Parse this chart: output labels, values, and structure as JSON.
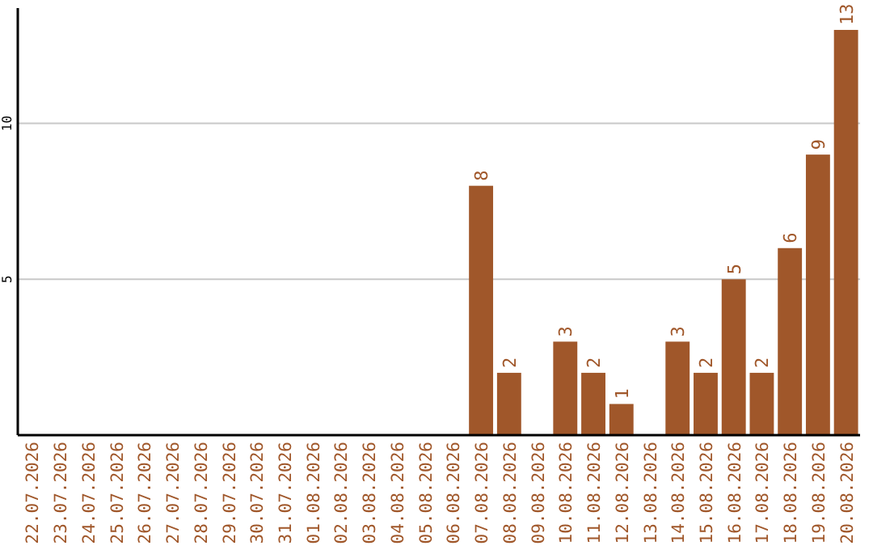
{
  "chart_data": {
    "type": "bar",
    "categories": [
      "22.07.2026",
      "23.07.2026",
      "24.07.2026",
      "25.07.2026",
      "26.07.2026",
      "27.07.2026",
      "28.07.2026",
      "29.07.2026",
      "30.07.2026",
      "31.07.2026",
      "01.08.2026",
      "02.08.2026",
      "03.08.2026",
      "04.08.2026",
      "05.08.2026",
      "06.08.2026",
      "07.08.2026",
      "08.08.2026",
      "09.08.2026",
      "10.08.2026",
      "11.08.2026",
      "12.08.2026",
      "13.08.2026",
      "14.08.2026",
      "15.08.2026",
      "16.08.2026",
      "17.08.2026",
      "18.08.2026",
      "19.08.2026",
      "20.08.2026"
    ],
    "values": [
      0,
      0,
      0,
      0,
      0,
      0,
      0,
      0,
      0,
      0,
      0,
      0,
      0,
      0,
      0,
      0,
      8,
      2,
      0,
      3,
      2,
      1,
      0,
      3,
      2,
      5,
      2,
      6,
      9,
      13
    ],
    "value_labels": [
      null,
      null,
      null,
      null,
      null,
      null,
      null,
      null,
      null,
      null,
      null,
      null,
      null,
      null,
      null,
      null,
      "8",
      "2",
      null,
      "3",
      "2",
      "1",
      null,
      "3",
      "2",
      "5",
      "2",
      "6",
      "9",
      "13"
    ],
    "color": "#a0572a",
    "ylim": [
      0,
      13.7
    ],
    "yticks": [
      5,
      10
    ],
    "grid": "y"
  }
}
